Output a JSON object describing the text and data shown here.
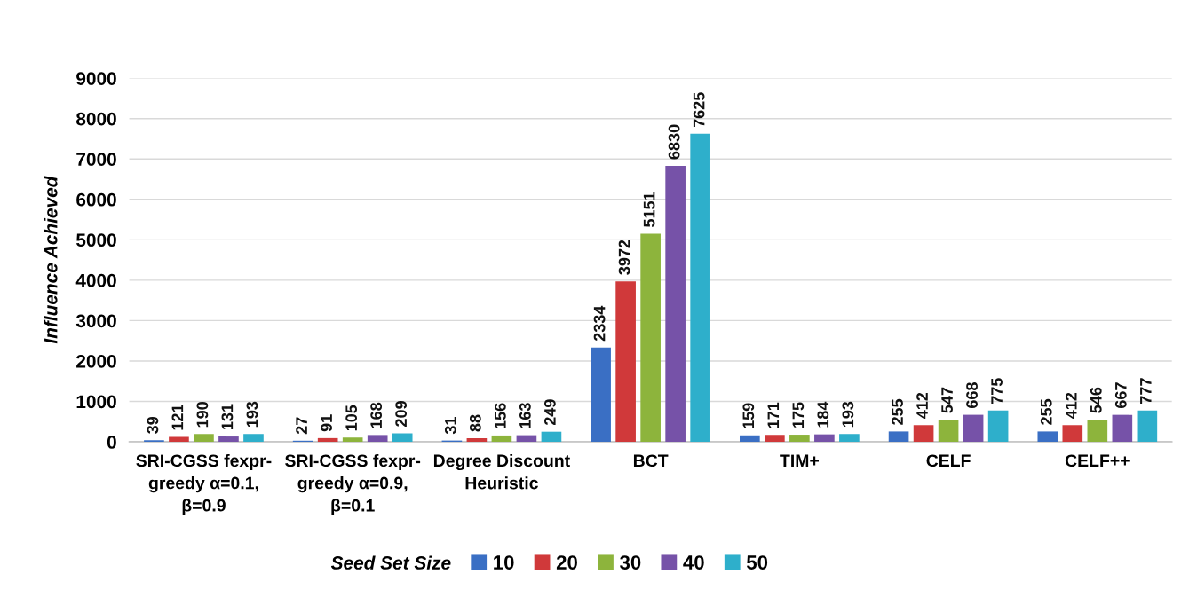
{
  "chart_data": {
    "type": "bar",
    "ylabel": "Influence Achieved",
    "legend_title": "Seed Set Size",
    "categories": [
      "SRI-CGSS fexpr-\ngreedy α=0.1,\nβ=0.9",
      "SRI-CGSS fexpr-\ngreedy α=0.9,\nβ=0.1",
      "Degree Discount\nHeuristic",
      "BCT",
      "TIM+",
      "CELF",
      "CELF++"
    ],
    "series": [
      {
        "name": "10",
        "color": "#3a6fc4",
        "values": [
          39,
          27,
          31,
          2334,
          159,
          255,
          255
        ]
      },
      {
        "name": "20",
        "color": "#d0393a",
        "values": [
          121,
          91,
          88,
          3972,
          171,
          412,
          412
        ]
      },
      {
        "name": "30",
        "color": "#8db43c",
        "values": [
          190,
          105,
          156,
          5151,
          175,
          547,
          546
        ]
      },
      {
        "name": "40",
        "color": "#7652a8",
        "values": [
          131,
          168,
          163,
          6830,
          184,
          668,
          667
        ]
      },
      {
        "name": "50",
        "color": "#2eafcb",
        "values": [
          193,
          209,
          249,
          7625,
          193,
          775,
          777
        ]
      }
    ],
    "ylim": [
      0,
      9000
    ],
    "yticks": [
      0,
      1000,
      2000,
      3000,
      4000,
      5000,
      6000,
      7000,
      8000,
      9000
    ],
    "grid": "y",
    "legend": "bottom",
    "data_labels": true
  }
}
